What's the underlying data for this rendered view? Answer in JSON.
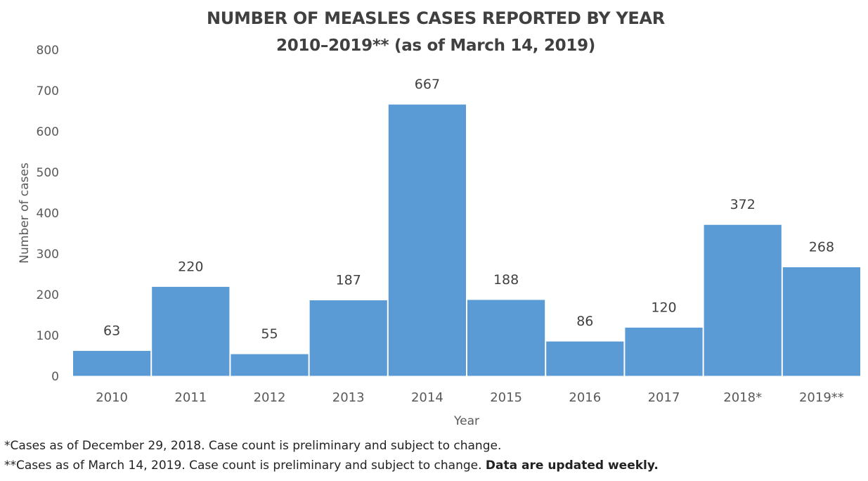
{
  "chart_data": {
    "type": "bar",
    "title": "NUMBER OF MEASLES CASES REPORTED BY YEAR",
    "subtitle": "2010–2019** (as of March 14, 2019)",
    "xlabel": "Year",
    "ylabel": "Number of cases",
    "categories": [
      "2010",
      "2011",
      "2012",
      "2013",
      "2014",
      "2015",
      "2016",
      "2017",
      "2018*",
      "2019**"
    ],
    "values": [
      63,
      220,
      55,
      187,
      667,
      188,
      86,
      120,
      372,
      268
    ],
    "data_labels": [
      "63",
      "220",
      "55",
      "187",
      "667",
      "188",
      "86",
      "120",
      "372",
      "268"
    ],
    "ylim": [
      0,
      800
    ],
    "yticks": [
      "0",
      "100",
      "200",
      "300",
      "400",
      "500",
      "600",
      "700",
      "800"
    ],
    "grid": false,
    "legend": "none",
    "bar_color": "#5B9BD5"
  },
  "footnotes": {
    "note1": "*Cases as of December 29, 2018. Case count is preliminary and subject to change.",
    "note2": "**Cases as of March 14, 2019. Case count is preliminary and subject to change.",
    "note2_bold": "Data are updated weekly."
  }
}
